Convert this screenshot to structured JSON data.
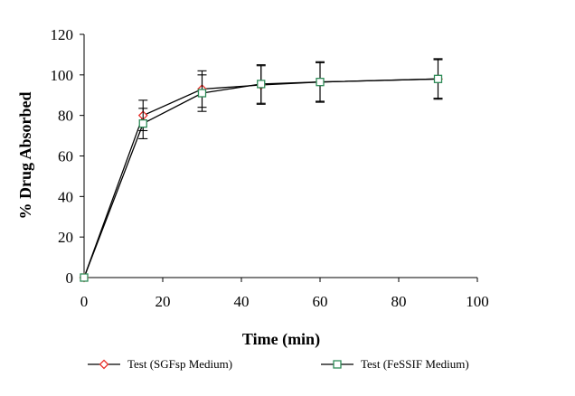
{
  "chart_data": {
    "type": "line",
    "title": "",
    "xlabel": "Time (min)",
    "ylabel": "% Drug Absorbed",
    "xlim": [
      0,
      100
    ],
    "ylim": [
      0,
      120
    ],
    "xticks": [
      0,
      20,
      40,
      60,
      80,
      100
    ],
    "yticks": [
      0,
      20,
      40,
      60,
      80,
      100,
      120
    ],
    "grid": false,
    "legend_position": "bottom",
    "series": [
      {
        "name": "Test (SGFsp Medium)",
        "marker": "diamond",
        "marker_color": "#e8302a",
        "line_color": "#000000",
        "x": [
          0,
          15,
          30,
          45,
          60,
          90
        ],
        "y": [
          0,
          80,
          93,
          95,
          96.5,
          98
        ],
        "error": [
          0,
          7.5,
          9,
          9.5,
          9.5,
          9.5
        ]
      },
      {
        "name": "Test (FeSSIF Medium)",
        "marker": "square",
        "marker_color": "#2e8b57",
        "line_color": "#000000",
        "x": [
          0,
          15,
          30,
          45,
          60,
          90
        ],
        "y": [
          0,
          76,
          91,
          95.5,
          96.5,
          98
        ],
        "error": [
          0,
          7.5,
          9,
          9.5,
          10,
          10
        ]
      }
    ]
  }
}
